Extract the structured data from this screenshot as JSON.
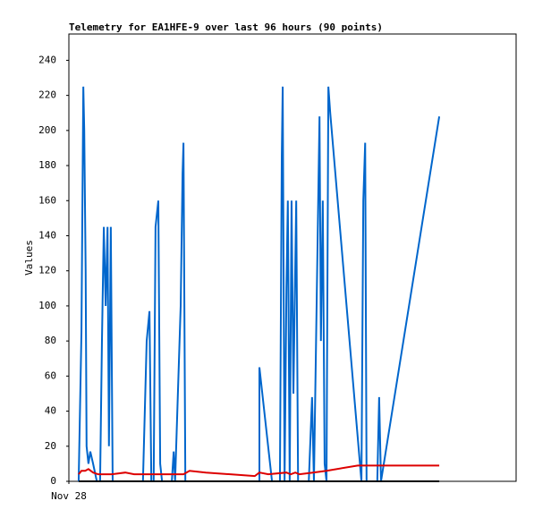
{
  "chart_data": {
    "type": "line",
    "title": "Telemetry for EA1HFE-9 over last 96 hours (90 points)",
    "ylabel": "Values",
    "xlim": [
      0,
      96
    ],
    "xticks": [
      {
        "value": 0,
        "label": "Nov 28"
      }
    ],
    "ylim": [
      0,
      255
    ],
    "yticks": [
      0,
      20,
      40,
      60,
      80,
      100,
      120,
      140,
      160,
      180,
      200,
      220,
      240
    ],
    "series": [
      {
        "color": "#0066cc",
        "x": [
          2.1,
          2.7,
          3.1,
          3.3,
          3.6,
          3.8,
          4.2,
          4.6,
          5.2,
          6.0,
          6.7,
          7.1,
          7.5,
          7.9,
          8.3,
          8.6,
          9.0,
          9.4,
          15.9,
          16.7,
          17.3,
          17.7,
          18.2,
          18.6,
          19.2,
          19.6,
          20.0,
          22.1,
          22.5,
          22.8,
          24.0,
          24.4,
          24.6,
          25.0,
          40.9,
          40.9,
          43.6,
          45.3,
          45.7,
          45.9,
          46.3,
          46.7,
          47.0,
          47.4,
          47.8,
          48.2,
          48.8,
          49.2,
          51.5,
          52.2,
          52.6,
          53.8,
          54.1,
          54.5,
          54.9,
          55.3,
          55.7,
          56.1,
          62.8,
          63.2,
          63.6,
          63.9,
          66.2,
          66.6,
          67.0,
          79.5
        ],
        "values": [
          0,
          85,
          225,
          200,
          120,
          20,
          10,
          17,
          10,
          0,
          0,
          80,
          145,
          100,
          145,
          20,
          145,
          0,
          0,
          80,
          97,
          0,
          0,
          145,
          160,
          10,
          0,
          0,
          17,
          0,
          100,
          175,
          193,
          0,
          0,
          65,
          0,
          0,
          185,
          225,
          0,
          110,
          160,
          0,
          160,
          50,
          160,
          0,
          0,
          48,
          0,
          208,
          80,
          160,
          10,
          0,
          225,
          210,
          0,
          160,
          193,
          0,
          0,
          48,
          0,
          208
        ]
      },
      {
        "color": "#dd0000",
        "x": [
          2.1,
          2.7,
          3.5,
          4.2,
          5.2,
          6.3,
          9.2,
          12.1,
          14.0,
          24.6,
          25.9,
          29.4,
          39.9,
          40.9,
          42.8,
          46.7,
          47.6,
          48.6,
          49.5,
          52.4,
          55.3,
          62.0,
          79.5
        ],
        "values": [
          4,
          6,
          6,
          7,
          5,
          4,
          4,
          5,
          4,
          4,
          6,
          5,
          3,
          5,
          4,
          5,
          4,
          5,
          4,
          5,
          6,
          9,
          9
        ]
      },
      {
        "color": "#000000",
        "x": [
          2.1,
          79.5
        ],
        "values": [
          0,
          0
        ]
      }
    ]
  }
}
